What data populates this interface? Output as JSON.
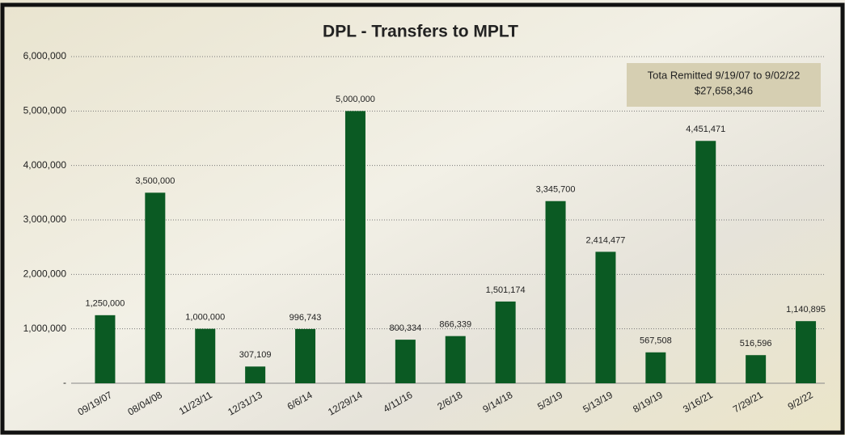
{
  "chart_data": {
    "type": "bar",
    "title": "DPL - Transfers to MPLT",
    "categories": [
      "09/19/07",
      "08/04/08",
      "11/23/11",
      "12/31/13",
      "6/6/14",
      "12/29/14",
      "4/11/16",
      "2/6/18",
      "9/14/18",
      "5/3/19",
      "5/13/19",
      "8/19/19",
      "3/16/21",
      "7/29/21",
      "9/2/22"
    ],
    "values": [
      1250000,
      3500000,
      1000000,
      307109,
      996743,
      5000000,
      800334,
      866339,
      1501174,
      3345700,
      2414477,
      567508,
      4451471,
      516596,
      1140895
    ],
    "value_labels": [
      "1,250,000",
      "3,500,000",
      "1,000,000",
      "307,109",
      "996,743",
      "5,000,000",
      "800,334",
      "866,339",
      "1,501,174",
      "3,345,700",
      "2,414,477",
      "567,508",
      "4,451,471",
      "516,596",
      "1,140,895"
    ],
    "color": "#0b5a23",
    "ylim": [
      0,
      6000000
    ],
    "yticks": [
      {
        "value": 0,
        "label": "-"
      },
      {
        "value": 1000000,
        "label": "1,000,000"
      },
      {
        "value": 2000000,
        "label": "2,000,000"
      },
      {
        "value": 3000000,
        "label": "3,000,000"
      },
      {
        "value": 4000000,
        "label": "4,000,000"
      },
      {
        "value": 5000000,
        "label": "5,000,000"
      },
      {
        "value": 6000000,
        "label": "6,000,000"
      }
    ],
    "grid": true,
    "annotation": {
      "line1": "Tota Remitted 9/19/07 to 9/02/22",
      "line2": "$27,658,346"
    }
  }
}
